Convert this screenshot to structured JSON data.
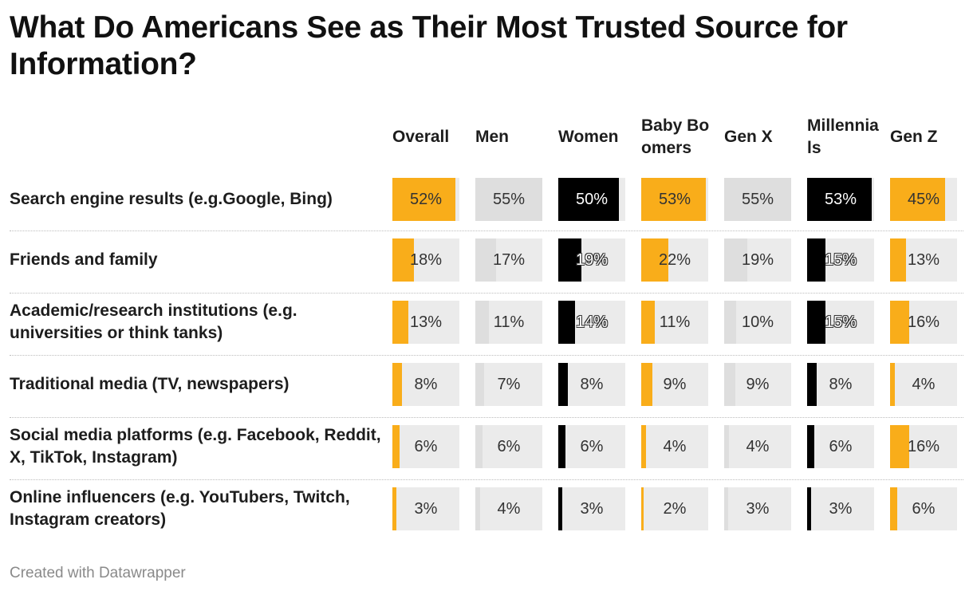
{
  "title": "What Do Americans See as Their Most Trusted Source for Information?",
  "footer": "Created with Datawrapper",
  "colors": {
    "orange": "#f9ad1a",
    "black": "#000000",
    "gray_bar": "#dedede",
    "track": "#ebebeb"
  },
  "chart_data": {
    "type": "table",
    "columns": [
      {
        "label": "Overall",
        "color": "#f9ad1a"
      },
      {
        "label": "Men",
        "color": "#dedede"
      },
      {
        "label": "Women",
        "color": "#000000"
      },
      {
        "label": "Baby Boomers",
        "color": "#f9ad1a"
      },
      {
        "label": "Gen X",
        "color": "#dedede"
      },
      {
        "label": "Millennials",
        "color": "#000000"
      },
      {
        "label": "Gen Z",
        "color": "#f9ad1a"
      }
    ],
    "rows": [
      {
        "label": "Search engine results (e.g.Google, Bing)",
        "values": [
          52,
          55,
          50,
          53,
          55,
          53,
          45
        ]
      },
      {
        "label": "Friends and family",
        "values": [
          18,
          17,
          19,
          22,
          19,
          15,
          13
        ]
      },
      {
        "label": "Academic/research institutions (e.g. universities or think tanks)",
        "values": [
          13,
          11,
          14,
          11,
          10,
          15,
          16
        ]
      },
      {
        "label": "Traditional media (TV, newspapers)",
        "values": [
          8,
          7,
          8,
          9,
          9,
          8,
          4
        ]
      },
      {
        "label": "Social media platforms (e.g. Facebook, Reddit, X, TikTok, Instagram)",
        "values": [
          6,
          6,
          6,
          4,
          4,
          6,
          16
        ]
      },
      {
        "label": "Online influencers (e.g. YouTubers, Twitch, Instagram creators)",
        "values": [
          3,
          4,
          3,
          2,
          3,
          3,
          6
        ]
      }
    ],
    "value_suffix": "%",
    "bar_max": 55
  }
}
